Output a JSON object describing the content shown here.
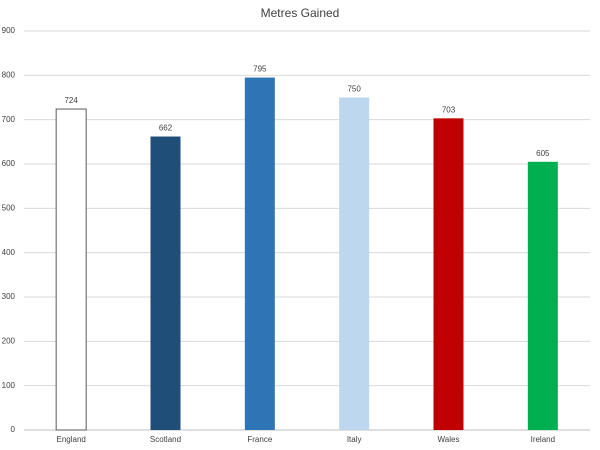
{
  "chart_data": {
    "type": "bar",
    "title": "Metres Gained",
    "categories": [
      "England",
      "Scotland",
      "France",
      "Italy",
      "Wales",
      "Ireland"
    ],
    "values": [
      724,
      662,
      795,
      750,
      703,
      605
    ],
    "colors": [
      "#ffffff",
      "#1f4e79",
      "#2e75b6",
      "#bdd7ee",
      "#c00000",
      "#00b050"
    ],
    "ylim": [
      0,
      900
    ],
    "yticks": [
      0,
      100,
      200,
      300,
      400,
      500,
      600,
      700,
      800,
      900
    ],
    "grid": true,
    "data_labels": true
  }
}
